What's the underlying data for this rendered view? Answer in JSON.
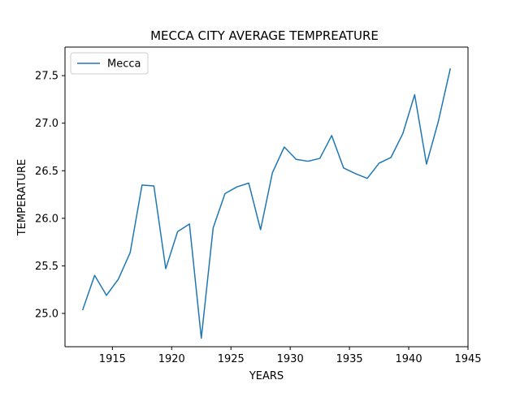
{
  "chart_data": {
    "type": "line",
    "title": "MECCA CITY AVERAGE TEMPREATURE",
    "xlabel": "YEARS",
    "ylabel": "TEMPERATURE",
    "xlim": [
      1911.0,
      1945.0
    ],
    "ylim": [
      24.65,
      27.8
    ],
    "xticks": [
      1915,
      1920,
      1925,
      1930,
      1935,
      1940,
      1945
    ],
    "yticks": [
      25.0,
      25.5,
      26.0,
      26.5,
      27.0,
      27.5
    ],
    "xtick_labels": [
      "1915",
      "1920",
      "1925",
      "1930",
      "1935",
      "1940",
      "1945"
    ],
    "ytick_labels": [
      "25.0",
      "25.5",
      "26.0",
      "26.5",
      "27.0",
      "27.5"
    ],
    "grid": false,
    "legend": "top-left",
    "x": [
      1912.5,
      1913.5,
      1914.5,
      1915.5,
      1916.5,
      1917.5,
      1918.5,
      1919.5,
      1920.5,
      1921.5,
      1922.5,
      1923.5,
      1924.5,
      1925.5,
      1926.5,
      1927.5,
      1928.5,
      1929.5,
      1930.5,
      1931.5,
      1932.5,
      1933.5,
      1934.5,
      1935.5,
      1936.5,
      1937.5,
      1938.5,
      1939.5,
      1940.5,
      1941.5,
      1942.5,
      1943.5
    ],
    "series": [
      {
        "name": "Mecca",
        "color": "#1f77b4",
        "values": [
          25.04,
          25.4,
          25.19,
          25.36,
          25.64,
          26.35,
          26.34,
          25.47,
          25.86,
          25.94,
          24.74,
          25.9,
          26.26,
          26.33,
          26.37,
          25.88,
          26.48,
          26.75,
          26.62,
          26.6,
          26.63,
          26.87,
          26.53,
          26.47,
          26.42,
          26.58,
          26.64,
          26.89,
          27.3,
          26.57,
          27.02,
          27.57
        ]
      }
    ]
  }
}
